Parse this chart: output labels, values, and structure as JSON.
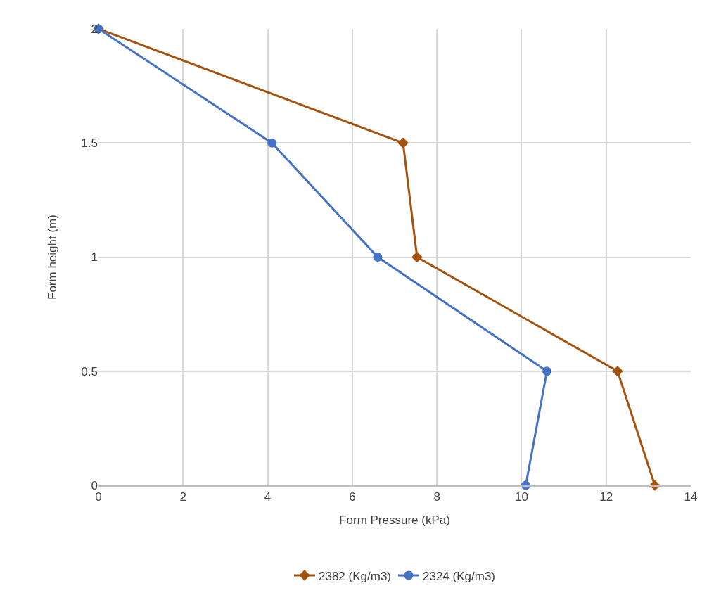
{
  "chart_data": {
    "type": "line",
    "xlabel": "Form Pressure (kPa)",
    "ylabel": "Form height (m)",
    "xlim": [
      0,
      14
    ],
    "xticks": [
      0,
      2,
      4,
      6,
      8,
      10,
      12,
      14
    ],
    "ylim": [
      0,
      2
    ],
    "yticks": [
      0,
      0.5,
      1,
      1.5,
      2
    ],
    "grid": true,
    "legend": "bottom",
    "line_style": "solid",
    "series": [
      {
        "name": "2382 (Kg/m3)",
        "color": "#a5520f",
        "marker": "diamond",
        "x": [
          0,
          7.2,
          7.53,
          12.27,
          13.15
        ],
        "values": [
          2,
          1.5,
          1,
          0.5,
          0
        ]
      },
      {
        "name": "2324 (Kg/m3)",
        "color": "#4472c4",
        "marker": "circle",
        "x": [
          0,
          4.1,
          6.6,
          10.6,
          10.1
        ],
        "values": [
          2,
          1.5,
          1,
          0.5,
          0
        ]
      }
    ]
  }
}
